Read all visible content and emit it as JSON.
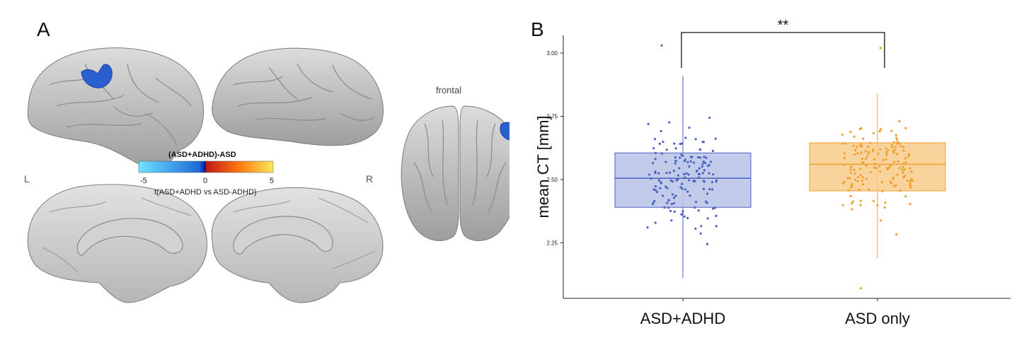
{
  "panel_a": {
    "letter": "A",
    "colorbar_title": "(ASD+ADHD)-ASD",
    "colorbar_ticks": [
      "-5",
      "0",
      "5"
    ],
    "colorbar_label": "t(ASD+ADHD vs ASD-ADHD)",
    "colorbar_colors": [
      "#6fe3ff",
      "#1e6ad8",
      "#00148f",
      "#d41e1e",
      "#ff7a10",
      "#ffe95a"
    ],
    "left_label": "L",
    "right_label": "R",
    "frontal_label": "frontal",
    "cortex_color": "#c8c8c8",
    "cluster_color": "#2a5fd0"
  },
  "panel_b": {
    "letter": "B",
    "significance": "**"
  },
  "chart_data": {
    "type": "box",
    "ylabel": "mean CT [mm]",
    "xlabel": "",
    "categories": [
      "ASD+ADHD",
      "ASD only"
    ],
    "y_ticks": [
      "2.25",
      "2.50",
      "2.75",
      "3.00"
    ],
    "y_tick_values": [
      2.25,
      2.5,
      2.75,
      3.0
    ],
    "ylim": [
      2.03,
      3.07
    ],
    "grid": false,
    "series": [
      {
        "category": "ASD+ADHD",
        "color": "#4a62c0",
        "box_fill": "#b8c2e6",
        "q1": 2.39,
        "median": 2.505,
        "q3": 2.605,
        "whisker_low": 2.11,
        "whisker_high": 2.91,
        "outliers": [
          3.03
        ]
      },
      {
        "category": "ASD only",
        "color": "#f0a030",
        "box_fill": "#f7cb8b",
        "q1": 2.455,
        "median": 2.56,
        "q3": 2.645,
        "whisker_low": 2.19,
        "whisker_high": 2.84,
        "outliers": [
          3.02,
          2.07
        ]
      }
    ],
    "annotation": {
      "text": "**",
      "between": [
        "ASD+ADHD",
        "ASD only"
      ]
    }
  }
}
